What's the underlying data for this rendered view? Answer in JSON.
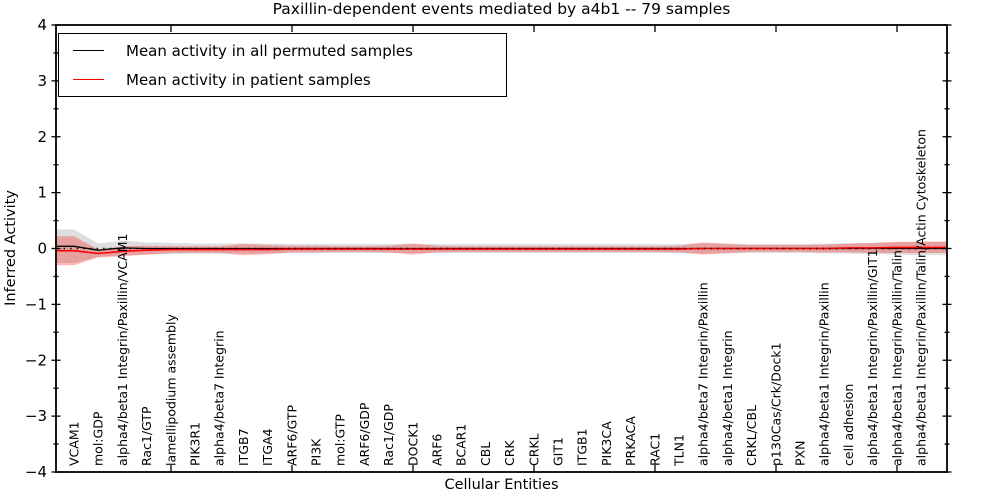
{
  "figure": {
    "title": "Paxillin-dependent events mediated by a4b1 -- 79 samples",
    "xlabel": "Cellular Entities",
    "ylabel": "Inferred Activity"
  },
  "legend": {
    "entries": [
      {
        "label": "Mean activity in all permuted samples",
        "color": "#000000"
      },
      {
        "label": "Mean activity in patient samples",
        "color": "#ff0000"
      }
    ]
  },
  "chart_data": {
    "type": "line",
    "title": "Paxillin-dependent events mediated by a4b1 -- 79 samples",
    "xlabel": "Cellular Entities",
    "ylabel": "Inferred Activity",
    "ylim": [
      -4,
      4
    ],
    "yticks": [
      4,
      3,
      2,
      1,
      0,
      -1,
      -2,
      -3,
      -4
    ],
    "y_minor_step": 0.5,
    "grid": false,
    "legend_position": "upper left",
    "zero_line": {
      "y": 0,
      "style": "dotted",
      "color": "#000000"
    },
    "categories": [
      "VCAM1",
      "mol:GDP",
      "alpha4/beta1 Integrin/Paxillin/VCAM1",
      "Rac1/GTP",
      "lamellipodium assembly",
      "PIK3R1",
      "alpha4/beta7 Integrin",
      "ITGB7",
      "ITGA4",
      "ARF6/GTP",
      "PI3K",
      "mol:GTP",
      "ARF6/GDP",
      "Rac1/GDP",
      "DOCK1",
      "ARF6",
      "BCAR1",
      "CBL",
      "CRK",
      "CRKL",
      "GIT1",
      "ITGB1",
      "PIK3CA",
      "PRKACA",
      "RAC1",
      "TLN1",
      "alpha4/beta7 Integrin/Paxillin",
      "alpha4/beta1 Integrin",
      "CRKL/CBL",
      "p130Cas/Crk/Dock1",
      "PXN",
      "alpha4/beta1 Integrin/Paxillin",
      "cell adhesion",
      "alpha4/beta1 Integrin/Paxillin/GIT1",
      "alpha4/beta1 Integrin/Paxillin/Talin",
      "alpha4/beta1 Integrin/Paxillin/Talin/Actin Cytoskeleton"
    ],
    "series": [
      {
        "name": "Mean activity in all permuted samples",
        "color": "#000000",
        "band_color": "rgba(0,0,0,0.13)",
        "values": [
          0.04,
          -0.03,
          0.01,
          0,
          0,
          0,
          0,
          0,
          0,
          0,
          0,
          0,
          0,
          0,
          0,
          0,
          0,
          0,
          0,
          0,
          0,
          0,
          0,
          0,
          0,
          0,
          0,
          0,
          0,
          0,
          0,
          0,
          0,
          0,
          0,
          0
        ],
        "band_std": [
          0.3,
          0.12,
          0.13,
          0.11,
          0.1,
          0.09,
          0.09,
          0.09,
          0.09,
          0.08,
          0.08,
          0.08,
          0.08,
          0.08,
          0.08,
          0.08,
          0.08,
          0.08,
          0.08,
          0.08,
          0.08,
          0.08,
          0.08,
          0.08,
          0.08,
          0.08,
          0.09,
          0.09,
          0.08,
          0.08,
          0.08,
          0.09,
          0.09,
          0.1,
          0.11,
          0.12
        ]
      },
      {
        "name": "Mean activity in patient samples",
        "color": "#ff0000",
        "band_color": "rgba(255,0,0,0.28)",
        "values": [
          -0.04,
          -0.09,
          -0.05,
          -0.03,
          -0.02,
          -0.02,
          -0.02,
          -0.02,
          -0.02,
          -0.01,
          -0.01,
          -0.01,
          -0.01,
          -0.01,
          -0.01,
          -0.01,
          -0.01,
          -0.01,
          -0.01,
          -0.01,
          -0.01,
          -0.01,
          -0.01,
          -0.01,
          -0.01,
          -0.01,
          0,
          0,
          0,
          0,
          0,
          0,
          0.01,
          0.01,
          0.02,
          0.02
        ],
        "band_std": [
          0.26,
          0.07,
          0.09,
          0.08,
          0.06,
          0.06,
          0.06,
          0.1,
          0.08,
          0.06,
          0.06,
          0.05,
          0.05,
          0.06,
          0.1,
          0.06,
          0.05,
          0.05,
          0.05,
          0.05,
          0.05,
          0.05,
          0.05,
          0.05,
          0.05,
          0.06,
          0.11,
          0.08,
          0.06,
          0.06,
          0.06,
          0.07,
          0.08,
          0.09,
          0.1,
          0.1
        ]
      }
    ],
    "n_samples_in_title": 79
  }
}
